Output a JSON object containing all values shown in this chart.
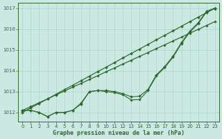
{
  "x": [
    0,
    1,
    2,
    3,
    4,
    5,
    6,
    7,
    8,
    9,
    10,
    11,
    12,
    13,
    14,
    15,
    16,
    17,
    18,
    19,
    20,
    21,
    22,
    23
  ],
  "linear1": [
    1012.0,
    1012.22,
    1012.43,
    1012.65,
    1012.87,
    1013.09,
    1013.3,
    1013.52,
    1013.74,
    1013.96,
    1014.17,
    1014.39,
    1014.61,
    1014.83,
    1015.04,
    1015.26,
    1015.48,
    1015.7,
    1015.91,
    1016.13,
    1016.35,
    1016.57,
    1016.78,
    1017.0
  ],
  "linear2": [
    1012.1,
    1012.28,
    1012.47,
    1012.65,
    1012.84,
    1013.02,
    1013.21,
    1013.39,
    1013.58,
    1013.76,
    1013.95,
    1014.13,
    1014.32,
    1014.5,
    1014.69,
    1014.87,
    1015.06,
    1015.24,
    1015.43,
    1015.61,
    1015.8,
    1015.98,
    1016.17,
    1016.35
  ],
  "wiggly1": [
    1012.1,
    1012.1,
    1012.0,
    1011.8,
    1012.0,
    1012.0,
    1012.1,
    1012.4,
    1013.0,
    1013.05,
    1013.05,
    1013.0,
    1012.9,
    1012.75,
    1012.78,
    1013.1,
    1013.8,
    1014.2,
    1014.7,
    1015.35,
    1015.9,
    1016.3,
    1016.85,
    1017.0
  ],
  "wiggly2": [
    1012.1,
    1012.1,
    1012.0,
    1011.8,
    1012.0,
    1012.0,
    1012.1,
    1012.45,
    1013.0,
    1013.05,
    1013.0,
    1012.95,
    1012.85,
    1012.6,
    1012.62,
    1013.05,
    1013.75,
    1014.15,
    1014.65,
    1015.3,
    1015.85,
    1016.25,
    1016.82,
    1016.97
  ],
  "bg_color": "#cce8e2",
  "line_color": "#2d6a2d",
  "grid_color": "#aad4cc",
  "xlabel": "Graphe pression niveau de la mer (hPa)",
  "ylim": [
    1011.55,
    1017.25
  ],
  "xlim": [
    -0.5,
    23.5
  ],
  "yticks": [
    1012,
    1013,
    1014,
    1015,
    1016,
    1017
  ],
  "xticks": [
    0,
    1,
    2,
    3,
    4,
    5,
    6,
    7,
    8,
    9,
    10,
    11,
    12,
    13,
    14,
    15,
    16,
    17,
    18,
    19,
    20,
    21,
    22,
    23
  ]
}
